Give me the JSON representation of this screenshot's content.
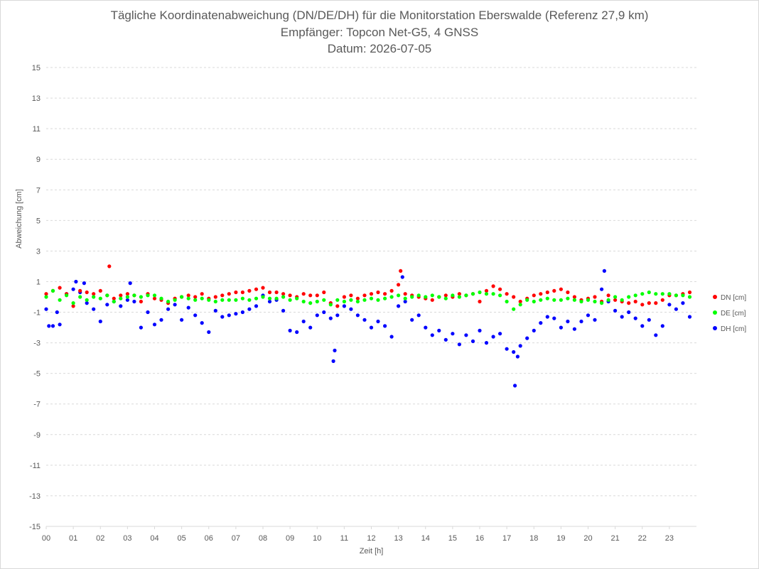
{
  "chart_data": {
    "type": "scatter",
    "title": "Tägliche Koordinatenabweichung (DN/DE/DH) für die Monitorstation Eberswalde (Referenz 27,9 km)",
    "subtitle": "Empfänger: Topcon Net-G5, 4 GNSS",
    "date_line": "Datum: 2026-07-05",
    "xlabel": "Zeit [h]",
    "ylabel": "Abweichung [cm]",
    "xlim": [
      0,
      24
    ],
    "ylim": [
      -15,
      15
    ],
    "x_ticks": [
      "00",
      "01",
      "02",
      "03",
      "04",
      "05",
      "06",
      "07",
      "08",
      "09",
      "10",
      "11",
      "12",
      "13",
      "14",
      "15",
      "16",
      "17",
      "18",
      "19",
      "20",
      "21",
      "22",
      "23"
    ],
    "y_ticks": [
      15,
      13,
      11,
      9,
      7,
      5,
      3,
      1,
      -1,
      -3,
      -5,
      -7,
      -9,
      -11,
      -13,
      -15
    ],
    "grid": "horizontal-dashed",
    "legend_position": "right",
    "colors": {
      "DN": "#ff0000",
      "DE": "#00ff00",
      "DH": "#0000ff",
      "text": "#595959",
      "grid": "#d9d9d9"
    },
    "series": [
      {
        "name": "DN [cm]",
        "color": "#ff0000",
        "x": [
          0,
          0.25,
          0.5,
          0.75,
          1,
          1.25,
          1.5,
          1.75,
          2,
          2.25,
          2.33,
          2.5,
          2.75,
          3,
          3.25,
          3.5,
          3.75,
          4,
          4.25,
          4.5,
          4.75,
          5,
          5.25,
          5.5,
          5.75,
          6,
          6.25,
          6.5,
          6.75,
          7,
          7.25,
          7.5,
          7.75,
          8,
          8.25,
          8.5,
          8.75,
          9,
          9.25,
          9.5,
          9.75,
          10,
          10.25,
          10.5,
          10.75,
          11,
          11.25,
          11.5,
          11.75,
          12,
          12.25,
          12.5,
          12.75,
          13,
          13.08,
          13.25,
          13.5,
          13.75,
          14,
          14.25,
          14.5,
          14.75,
          15,
          15.25,
          15.5,
          15.75,
          16,
          16.25,
          16.5,
          16.75,
          17,
          17.25,
          17.5,
          17.75,
          18,
          18.25,
          18.5,
          18.75,
          19,
          19.25,
          19.5,
          19.75,
          20,
          20.25,
          20.5,
          20.75,
          21,
          21.25,
          21.5,
          21.75,
          22,
          22.25,
          22.5,
          22.75,
          23,
          23.25,
          23.5,
          23.75
        ],
        "y": [
          0.2,
          0.4,
          0.6,
          0.2,
          -0.6,
          0.4,
          0.3,
          0.2,
          0.4,
          0.1,
          2.0,
          -0.1,
          0.1,
          0.2,
          0.1,
          -0.3,
          0.2,
          -0.1,
          -0.2,
          -0.4,
          -0.1,
          0.0,
          0.1,
          0.0,
          0.2,
          -0.1,
          0.0,
          0.1,
          0.2,
          0.3,
          0.3,
          0.4,
          0.5,
          0.6,
          0.3,
          0.3,
          0.2,
          0.1,
          0.0,
          0.2,
          0.1,
          0.1,
          0.3,
          -0.4,
          -0.6,
          0.0,
          0.1,
          -0.1,
          0.1,
          0.2,
          0.3,
          0.2,
          0.4,
          0.8,
          1.7,
          0.2,
          0.1,
          0.0,
          -0.1,
          -0.2,
          0.0,
          0.1,
          0.0,
          0.2,
          0.1,
          0.2,
          -0.3,
          0.4,
          0.7,
          0.5,
          0.2,
          0.0,
          -0.3,
          -0.1,
          0.1,
          0.2,
          0.3,
          0.4,
          0.5,
          0.3,
          0.0,
          -0.2,
          -0.1,
          0.0,
          -0.3,
          0.1,
          -0.2,
          -0.3,
          -0.4,
          -0.3,
          -0.5,
          -0.4,
          -0.4,
          -0.2,
          0.1,
          0.1,
          0.2,
          0.3
        ]
      },
      {
        "name": "DE [cm]",
        "color": "#00ff00",
        "x": [
          0,
          0.25,
          0.5,
          0.75,
          1,
          1.25,
          1.5,
          1.75,
          2,
          2.25,
          2.5,
          2.75,
          3,
          3.25,
          3.5,
          3.75,
          4,
          4.25,
          4.5,
          4.75,
          5,
          5.25,
          5.5,
          5.75,
          6,
          6.25,
          6.5,
          6.75,
          7,
          7.25,
          7.5,
          7.75,
          8,
          8.25,
          8.5,
          8.75,
          9,
          9.25,
          9.5,
          9.75,
          10,
          10.25,
          10.5,
          10.75,
          11,
          11.25,
          11.5,
          11.75,
          12,
          12.25,
          12.5,
          12.75,
          13,
          13.25,
          13.5,
          13.75,
          14,
          14.25,
          14.5,
          14.75,
          15,
          15.25,
          15.5,
          15.75,
          16,
          16.25,
          16.5,
          16.75,
          17,
          17.25,
          17.5,
          17.75,
          18,
          18.25,
          18.5,
          18.75,
          19,
          19.25,
          19.5,
          19.75,
          20,
          20.25,
          20.5,
          20.75,
          21,
          21.25,
          21.5,
          21.75,
          22,
          22.25,
          22.5,
          22.75,
          23,
          23.25,
          23.5,
          23.75
        ],
        "y": [
          0.0,
          0.4,
          -0.2,
          0.1,
          -0.4,
          0.0,
          -0.2,
          0.0,
          -0.1,
          0.1,
          -0.3,
          -0.1,
          0.0,
          0.1,
          0.0,
          0.1,
          0.1,
          -0.1,
          -0.3,
          -0.2,
          0.0,
          -0.1,
          -0.2,
          -0.1,
          -0.2,
          -0.3,
          -0.2,
          -0.2,
          -0.2,
          -0.1,
          -0.2,
          -0.1,
          0.0,
          -0.1,
          -0.1,
          0.0,
          -0.2,
          -0.1,
          -0.3,
          -0.4,
          -0.3,
          -0.2,
          -0.5,
          -0.2,
          -0.3,
          -0.2,
          -0.3,
          -0.2,
          -0.1,
          -0.2,
          -0.1,
          0.0,
          0.1,
          -0.1,
          0.0,
          0.1,
          0.0,
          0.1,
          0.0,
          -0.1,
          0.1,
          0.0,
          0.1,
          0.2,
          0.3,
          0.2,
          0.2,
          0.1,
          -0.3,
          -0.8,
          -0.5,
          -0.2,
          -0.3,
          -0.2,
          -0.1,
          -0.2,
          -0.2,
          -0.1,
          -0.2,
          -0.3,
          -0.2,
          -0.3,
          -0.4,
          -0.2,
          0.0,
          -0.2,
          0.0,
          0.1,
          0.2,
          0.3,
          0.2,
          0.2,
          0.2,
          0.1,
          0.1,
          0.0
        ]
      },
      {
        "name": "DH [cm]",
        "color": "#0000ff",
        "x": [
          0,
          0.1,
          0.25,
          0.4,
          0.5,
          0.75,
          1,
          1.1,
          1.25,
          1.4,
          1.5,
          1.75,
          2,
          2.25,
          2.5,
          2.75,
          3,
          3.1,
          3.25,
          3.5,
          3.75,
          4,
          4.25,
          4.5,
          4.75,
          5,
          5.25,
          5.5,
          5.75,
          6,
          6.25,
          6.5,
          6.75,
          7,
          7.25,
          7.5,
          7.75,
          8,
          8.25,
          8.5,
          8.75,
          9,
          9.25,
          9.5,
          9.75,
          10,
          10.25,
          10.5,
          10.6,
          10.65,
          10.75,
          11,
          11.25,
          11.5,
          11.75,
          12,
          12.25,
          12.5,
          12.75,
          13,
          13.15,
          13.25,
          13.5,
          13.75,
          14,
          14.25,
          14.5,
          14.75,
          15,
          15.25,
          15.5,
          15.75,
          16,
          16.25,
          16.5,
          16.75,
          17,
          17.25,
          17.3,
          17.4,
          17.5,
          17.75,
          18,
          18.25,
          18.5,
          18.75,
          19,
          19.25,
          19.5,
          19.75,
          20,
          20.25,
          20.5,
          20.6,
          20.75,
          21,
          21.25,
          21.5,
          21.75,
          22,
          22.25,
          22.5,
          22.75,
          23,
          23.25,
          23.5,
          23.75
        ],
        "y": [
          -0.8,
          -1.9,
          -1.9,
          -1.0,
          -1.8,
          0.2,
          0.5,
          1.0,
          0.3,
          0.9,
          -0.4,
          -0.8,
          -1.6,
          -0.5,
          -0.3,
          -0.6,
          -0.2,
          0.9,
          -0.3,
          -2.0,
          -1.0,
          -1.8,
          -1.5,
          -0.8,
          -0.5,
          -1.5,
          -0.7,
          -1.2,
          -1.7,
          -2.3,
          -0.9,
          -1.3,
          -1.2,
          -1.1,
          -1.0,
          -0.8,
          -0.6,
          0.1,
          -0.3,
          -0.2,
          -0.9,
          -2.2,
          -2.3,
          -1.6,
          -2.0,
          -1.2,
          -1.0,
          -1.4,
          -4.2,
          -3.5,
          -1.2,
          -0.6,
          -0.8,
          -1.2,
          -1.5,
          -2.0,
          -1.6,
          -1.9,
          -2.6,
          -0.6,
          1.3,
          -0.3,
          -1.5,
          -1.2,
          -2.0,
          -2.5,
          -2.2,
          -2.8,
          -2.4,
          -3.1,
          -2.5,
          -2.9,
          -2.2,
          -3.0,
          -2.6,
          -2.4,
          -3.4,
          -3.6,
          -5.8,
          -3.9,
          -3.2,
          -2.7,
          -2.2,
          -1.7,
          -1.3,
          -1.4,
          -2.0,
          -1.6,
          -2.1,
          -1.6,
          -1.2,
          -1.5,
          0.5,
          1.7,
          -0.3,
          -0.9,
          -1.3,
          -1.0,
          -1.4,
          -1.9,
          -1.5,
          -2.5,
          -1.9,
          -0.5,
          -0.8,
          -0.4,
          -1.3
        ]
      }
    ]
  }
}
